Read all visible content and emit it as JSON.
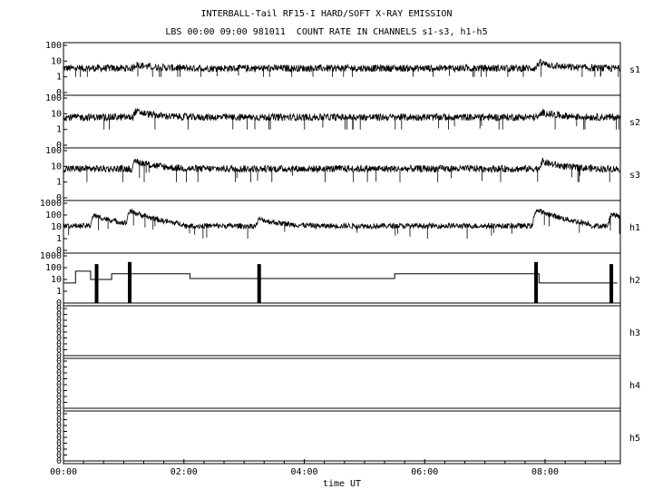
{
  "title": "INTERBALL-Tail RF15-I HARD/SOFT X-RAY EMISSION",
  "subtitle": "LBS 00:00 09:00 981011  COUNT RATE IN CHANNELS s1-s3, h1-h5",
  "chart_data": {
    "type": "line",
    "title": "INTERBALL-Tail RF15-I HARD/SOFT X-RAY EMISSION",
    "subtitle": "LBS 00:00 09:00 981011  COUNT RATE IN CHANNELS s1-s3, h1-h5",
    "xlabel": "time UT",
    "x_range_hours": [
      0,
      9.25
    ],
    "x_ticks": [
      {
        "value": 0,
        "label": "00:00"
      },
      {
        "value": 2,
        "label": "02:00"
      },
      {
        "value": 4,
        "label": "04:00"
      },
      {
        "value": 6,
        "label": "06:00"
      },
      {
        "value": 8,
        "label": "08:00"
      }
    ],
    "y_scale": "log",
    "panels": [
      {
        "name": "s1",
        "y_ticks": [
          "100",
          "10",
          "1",
          "0"
        ],
        "baseline": 3.5,
        "events": [
          {
            "t": 1.2,
            "peak": 6
          },
          {
            "t": 7.9,
            "peak": 8
          }
        ]
      },
      {
        "name": "s2",
        "y_ticks": [
          "100",
          "10",
          "1",
          "0"
        ],
        "baseline": 6,
        "events": [
          {
            "t": 1.2,
            "peak": 14
          },
          {
            "t": 7.95,
            "peak": 12
          }
        ]
      },
      {
        "name": "s3",
        "y_ticks": [
          "100",
          "10",
          "1",
          "0"
        ],
        "baseline": 7,
        "events": [
          {
            "t": 1.2,
            "peak": 22
          },
          {
            "t": 7.95,
            "peak": 20
          }
        ]
      },
      {
        "name": "h1",
        "y_ticks": [
          "1000",
          "100",
          "10",
          "1",
          "0"
        ],
        "baseline": 12,
        "events": [
          {
            "t": 0.5,
            "peak": 90
          },
          {
            "t": 1.1,
            "peak": 200
          },
          {
            "t": 3.25,
            "peak": 45
          },
          {
            "t": 7.85,
            "peak": 250
          },
          {
            "t": 9.1,
            "peak": 120
          }
        ]
      },
      {
        "name": "h2",
        "y_ticks": [
          "1000",
          "100",
          "10",
          "1",
          "0"
        ],
        "steps": [
          {
            "from": 0.0,
            "to": 0.2,
            "value": 5
          },
          {
            "from": 0.2,
            "to": 0.45,
            "value": 50
          },
          {
            "from": 0.45,
            "to": 0.8,
            "value": 10
          },
          {
            "from": 0.8,
            "to": 2.1,
            "value": 30
          },
          {
            "from": 2.1,
            "to": 5.5,
            "value": 12
          },
          {
            "from": 5.5,
            "to": 7.9,
            "value": 30
          },
          {
            "from": 7.9,
            "to": 9.2,
            "value": 5
          }
        ],
        "spikes": [
          {
            "t": 0.55,
            "peak": 200
          },
          {
            "t": 1.1,
            "peak": 300
          },
          {
            "t": 3.25,
            "peak": 200
          },
          {
            "t": 7.85,
            "peak": 300
          },
          {
            "t": 9.1,
            "peak": 200
          }
        ]
      },
      {
        "name": "h3",
        "y_ticks": [
          "0",
          "0",
          "0",
          "0",
          "0",
          "0",
          "0",
          "0",
          "0"
        ],
        "baseline": 0
      },
      {
        "name": "h4",
        "y_ticks": [
          "0",
          "0",
          "0",
          "0",
          "0",
          "0",
          "0",
          "0",
          "0"
        ],
        "baseline": 0
      },
      {
        "name": "h5",
        "y_ticks": [
          "0",
          "0",
          "0",
          "0",
          "0",
          "0",
          "0",
          "0",
          "0"
        ],
        "baseline": 0
      }
    ]
  }
}
